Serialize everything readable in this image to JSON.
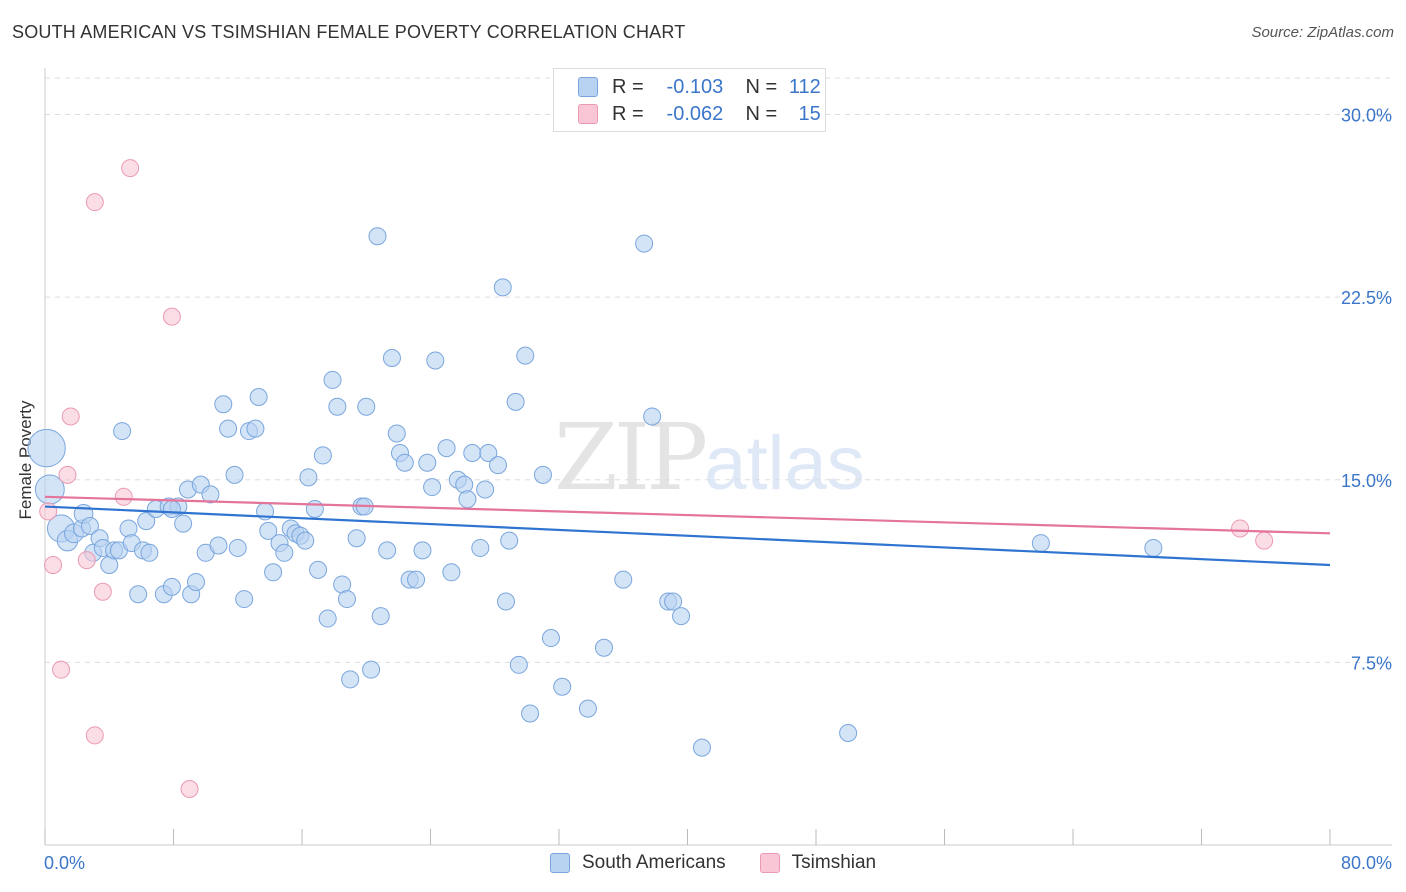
{
  "header": {
    "title": "SOUTH AMERICAN VS TSIMSHIAN FEMALE POVERTY CORRELATION CHART",
    "source": "Source: ZipAtlas.com"
  },
  "watermark": {
    "zip": "ZIP",
    "atlas": "atlas"
  },
  "legend": {
    "rows": [
      {
        "r_label": "R =",
        "r_value": "-0.103",
        "n_label": "N =",
        "n_value": "112"
      },
      {
        "r_label": "R =",
        "r_value": "-0.062",
        "n_label": "N =",
        "n_value": "15"
      }
    ]
  },
  "colors": {
    "blue_fill": "#b8d2f2",
    "blue_stroke": "#7aa6dd",
    "blue_line": "#2f74d0",
    "pink_fill": "#f8c6d5",
    "pink_stroke": "#eb9ab4",
    "pink_line": "#e4749a",
    "tick_text": "#3b76c9",
    "grid": "#dddddd"
  },
  "chart_data": {
    "type": "scatter",
    "title": "SOUTH AMERICAN VS TSIMSHIAN FEMALE POVERTY CORRELATION CHART",
    "xlabel": "",
    "ylabel": "Female Poverty",
    "xlim": [
      0,
      80
    ],
    "ylim": [
      0,
      31.5
    ],
    "x_tick_labels": [
      "0.0%",
      "80.0%"
    ],
    "y_ticks": [
      7.5,
      15.0,
      22.5,
      30.0
    ],
    "y_tick_labels": [
      "7.5%",
      "15.0%",
      "22.5%",
      "30.0%"
    ],
    "grid": true,
    "legend_position": "bottom",
    "series": [
      {
        "name": "South Americans",
        "color": "#b8d2f2",
        "trend": {
          "x": [
            0,
            80
          ],
          "y": [
            13.9,
            11.5
          ]
        },
        "points": [
          {
            "x": 0.1,
            "y": 16.3,
            "s": 2.2
          },
          {
            "x": 0.3,
            "y": 14.6,
            "s": 1.7
          },
          {
            "x": 1.0,
            "y": 13.0,
            "s": 1.6
          },
          {
            "x": 1.4,
            "y": 12.5,
            "s": 1.2
          },
          {
            "x": 1.8,
            "y": 12.8,
            "s": 1.1
          },
          {
            "x": 2.3,
            "y": 13.0,
            "s": 1.0
          },
          {
            "x": 2.4,
            "y": 13.6,
            "s": 1.1
          },
          {
            "x": 2.8,
            "y": 13.1,
            "s": 1.0
          },
          {
            "x": 3.0,
            "y": 12.0,
            "s": 1.0
          },
          {
            "x": 3.4,
            "y": 12.6,
            "s": 1.0
          },
          {
            "x": 3.6,
            "y": 12.2,
            "s": 1.0
          },
          {
            "x": 4.0,
            "y": 11.5,
            "s": 1.0
          },
          {
            "x": 4.3,
            "y": 12.1,
            "s": 1.0
          },
          {
            "x": 4.6,
            "y": 12.1,
            "s": 1.0
          },
          {
            "x": 4.8,
            "y": 17.0,
            "s": 1.0
          },
          {
            "x": 5.2,
            "y": 13.0,
            "s": 1.0
          },
          {
            "x": 5.4,
            "y": 12.4,
            "s": 1.0
          },
          {
            "x": 5.8,
            "y": 10.3,
            "s": 1.0
          },
          {
            "x": 6.1,
            "y": 12.1,
            "s": 1.0
          },
          {
            "x": 6.3,
            "y": 13.3,
            "s": 1.0
          },
          {
            "x": 6.5,
            "y": 12.0,
            "s": 1.0
          },
          {
            "x": 6.9,
            "y": 13.8,
            "s": 1.0
          },
          {
            "x": 7.4,
            "y": 10.3,
            "s": 1.0
          },
          {
            "x": 7.7,
            "y": 13.9,
            "s": 1.0
          },
          {
            "x": 7.9,
            "y": 10.6,
            "s": 1.0
          },
          {
            "x": 8.3,
            "y": 13.9,
            "s": 1.0
          },
          {
            "x": 8.6,
            "y": 13.2,
            "s": 1.0
          },
          {
            "x": 8.9,
            "y": 14.6,
            "s": 1.0
          },
          {
            "x": 9.1,
            "y": 10.3,
            "s": 1.0
          },
          {
            "x": 9.4,
            "y": 10.8,
            "s": 1.0
          },
          {
            "x": 9.7,
            "y": 14.8,
            "s": 1.0
          },
          {
            "x": 10.0,
            "y": 12.0,
            "s": 1.0
          },
          {
            "x": 10.3,
            "y": 14.4,
            "s": 1.0
          },
          {
            "x": 10.8,
            "y": 12.3,
            "s": 1.0
          },
          {
            "x": 11.1,
            "y": 18.1,
            "s": 1.0
          },
          {
            "x": 11.4,
            "y": 17.1,
            "s": 1.0
          },
          {
            "x": 11.8,
            "y": 15.2,
            "s": 1.0
          },
          {
            "x": 12.0,
            "y": 12.2,
            "s": 1.0
          },
          {
            "x": 12.4,
            "y": 10.1,
            "s": 1.0
          },
          {
            "x": 12.7,
            "y": 17.0,
            "s": 1.0
          },
          {
            "x": 13.1,
            "y": 17.1,
            "s": 1.0
          },
          {
            "x": 13.3,
            "y": 18.4,
            "s": 1.0
          },
          {
            "x": 13.7,
            "y": 13.7,
            "s": 1.0
          },
          {
            "x": 13.9,
            "y": 12.9,
            "s": 1.0
          },
          {
            "x": 14.2,
            "y": 11.2,
            "s": 1.0
          },
          {
            "x": 14.6,
            "y": 12.4,
            "s": 1.0
          },
          {
            "x": 14.9,
            "y": 12.0,
            "s": 1.0
          },
          {
            "x": 15.3,
            "y": 13.0,
            "s": 1.0
          },
          {
            "x": 15.6,
            "y": 12.8,
            "s": 1.0
          },
          {
            "x": 15.9,
            "y": 12.7,
            "s": 1.0
          },
          {
            "x": 16.2,
            "y": 12.5,
            "s": 1.0
          },
          {
            "x": 16.4,
            "y": 15.1,
            "s": 1.0
          },
          {
            "x": 16.8,
            "y": 13.8,
            "s": 1.0
          },
          {
            "x": 17.0,
            "y": 11.3,
            "s": 1.0
          },
          {
            "x": 17.3,
            "y": 16.0,
            "s": 1.0
          },
          {
            "x": 17.6,
            "y": 9.3,
            "s": 1.0
          },
          {
            "x": 17.9,
            "y": 19.1,
            "s": 1.0
          },
          {
            "x": 18.2,
            "y": 18.0,
            "s": 1.0
          },
          {
            "x": 18.5,
            "y": 10.7,
            "s": 1.0
          },
          {
            "x": 18.8,
            "y": 10.1,
            "s": 1.0
          },
          {
            "x": 19.0,
            "y": 6.8,
            "s": 1.0
          },
          {
            "x": 19.4,
            "y": 12.6,
            "s": 1.0
          },
          {
            "x": 19.7,
            "y": 13.9,
            "s": 1.0
          },
          {
            "x": 20.0,
            "y": 18.0,
            "s": 1.0
          },
          {
            "x": 20.3,
            "y": 7.2,
            "s": 1.0
          },
          {
            "x": 20.7,
            "y": 25.0,
            "s": 1.0
          },
          {
            "x": 20.9,
            "y": 9.4,
            "s": 1.0
          },
          {
            "x": 21.3,
            "y": 12.1,
            "s": 1.0
          },
          {
            "x": 21.6,
            "y": 20.0,
            "s": 1.0
          },
          {
            "x": 21.9,
            "y": 16.9,
            "s": 1.0
          },
          {
            "x": 22.1,
            "y": 16.1,
            "s": 1.0
          },
          {
            "x": 22.4,
            "y": 15.7,
            "s": 1.0
          },
          {
            "x": 22.7,
            "y": 10.9,
            "s": 1.0
          },
          {
            "x": 23.1,
            "y": 10.9,
            "s": 1.0
          },
          {
            "x": 23.5,
            "y": 12.1,
            "s": 1.0
          },
          {
            "x": 23.8,
            "y": 15.7,
            "s": 1.0
          },
          {
            "x": 24.1,
            "y": 14.7,
            "s": 1.0
          },
          {
            "x": 24.3,
            "y": 19.9,
            "s": 1.0
          },
          {
            "x": 25.0,
            "y": 16.3,
            "s": 1.0
          },
          {
            "x": 25.3,
            "y": 11.2,
            "s": 1.0
          },
          {
            "x": 25.7,
            "y": 15.0,
            "s": 1.0
          },
          {
            "x": 26.1,
            "y": 14.8,
            "s": 1.0
          },
          {
            "x": 26.3,
            "y": 14.2,
            "s": 1.0
          },
          {
            "x": 26.6,
            "y": 16.1,
            "s": 1.0
          },
          {
            "x": 27.1,
            "y": 12.2,
            "s": 1.0
          },
          {
            "x": 27.4,
            "y": 14.6,
            "s": 1.0
          },
          {
            "x": 27.6,
            "y": 16.1,
            "s": 1.0
          },
          {
            "x": 28.2,
            "y": 15.6,
            "s": 1.0
          },
          {
            "x": 28.5,
            "y": 22.9,
            "s": 1.0
          },
          {
            "x": 28.7,
            "y": 10.0,
            "s": 1.0
          },
          {
            "x": 28.9,
            "y": 12.5,
            "s": 1.0
          },
          {
            "x": 29.3,
            "y": 18.2,
            "s": 1.0
          },
          {
            "x": 29.5,
            "y": 7.4,
            "s": 1.0
          },
          {
            "x": 29.9,
            "y": 20.1,
            "s": 1.0
          },
          {
            "x": 30.2,
            "y": 5.4,
            "s": 1.0
          },
          {
            "x": 31.0,
            "y": 15.2,
            "s": 1.0
          },
          {
            "x": 31.5,
            "y": 8.5,
            "s": 1.0
          },
          {
            "x": 32.2,
            "y": 6.5,
            "s": 1.0
          },
          {
            "x": 33.8,
            "y": 5.6,
            "s": 1.0
          },
          {
            "x": 34.8,
            "y": 8.1,
            "s": 1.0
          },
          {
            "x": 36.0,
            "y": 10.9,
            "s": 1.0
          },
          {
            "x": 37.3,
            "y": 24.7,
            "s": 1.0
          },
          {
            "x": 37.8,
            "y": 17.6,
            "s": 1.0
          },
          {
            "x": 38.8,
            "y": 10.0,
            "s": 1.0
          },
          {
            "x": 39.1,
            "y": 10.0,
            "s": 1.0
          },
          {
            "x": 39.6,
            "y": 9.4,
            "s": 1.0
          },
          {
            "x": 40.9,
            "y": 4.0,
            "s": 1.0
          },
          {
            "x": 50.0,
            "y": 4.6,
            "s": 1.0
          },
          {
            "x": 62.0,
            "y": 12.4,
            "s": 1.0
          },
          {
            "x": 69.0,
            "y": 12.2,
            "s": 1.0
          },
          {
            "x": 7.9,
            "y": 13.8,
            "s": 1.0
          },
          {
            "x": 19.9,
            "y": 13.9,
            "s": 1.0
          }
        ]
      },
      {
        "name": "Tsimshian",
        "color": "#f8c6d5",
        "trend": {
          "x": [
            0,
            80
          ],
          "y": [
            14.3,
            12.8
          ]
        },
        "points": [
          {
            "x": 0.5,
            "y": 11.5,
            "s": 1.0
          },
          {
            "x": 1.0,
            "y": 7.2,
            "s": 1.0
          },
          {
            "x": 1.4,
            "y": 15.2,
            "s": 1.0
          },
          {
            "x": 1.6,
            "y": 17.6,
            "s": 1.0
          },
          {
            "x": 2.6,
            "y": 11.7,
            "s": 1.0
          },
          {
            "x": 3.1,
            "y": 26.4,
            "s": 1.0
          },
          {
            "x": 3.1,
            "y": 4.5,
            "s": 1.0
          },
          {
            "x": 3.6,
            "y": 10.4,
            "s": 1.0
          },
          {
            "x": 4.9,
            "y": 14.3,
            "s": 1.0
          },
          {
            "x": 5.3,
            "y": 27.8,
            "s": 1.0
          },
          {
            "x": 7.9,
            "y": 21.7,
            "s": 1.0
          },
          {
            "x": 9.0,
            "y": 2.3,
            "s": 1.0
          },
          {
            "x": 74.4,
            "y": 13.0,
            "s": 1.0
          },
          {
            "x": 75.9,
            "y": 12.5,
            "s": 1.0
          },
          {
            "x": 0.2,
            "y": 13.7,
            "s": 1.0
          }
        ]
      }
    ]
  }
}
